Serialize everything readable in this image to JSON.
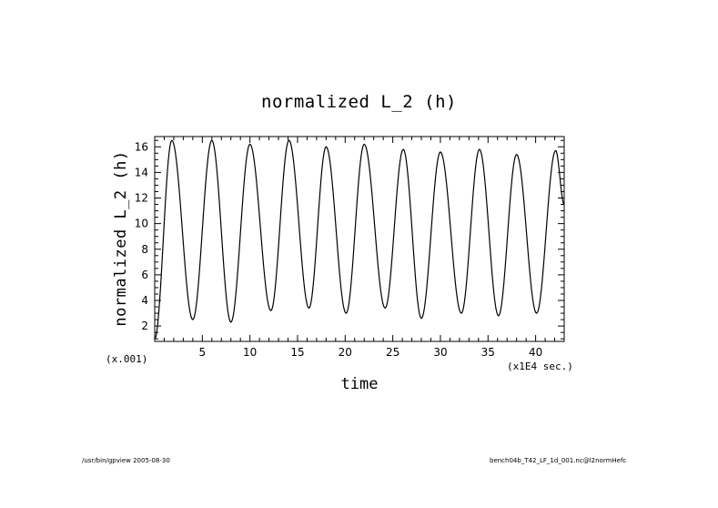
{
  "chart_data": {
    "type": "line",
    "title": "normalized L_2 (h)",
    "xlabel": "time",
    "ylabel": "normalized L_2 (h)",
    "x_unit_label": "(x1E4 sec.)",
    "y_scale_label": "(x.001)",
    "xlim": [
      0,
      43
    ],
    "ylim": [
      0.8,
      16.8
    ],
    "x_ticks": [
      "5",
      "10",
      "15",
      "20",
      "25",
      "30",
      "35",
      "40"
    ],
    "y_ticks": [
      "2",
      "4",
      "6",
      "8",
      "10",
      "12",
      "14",
      "16"
    ],
    "grid": false,
    "series": [
      {
        "x": [
          0.0,
          1.8,
          4.0,
          6.0,
          8.0,
          10.0,
          12.2,
          14.1,
          16.2,
          18.0,
          20.1,
          22.0,
          24.2,
          26.1,
          28.0,
          30.0,
          32.2,
          34.1,
          36.1,
          38.0,
          40.1,
          42.1,
          43.0
        ],
        "y": [
          1.0,
          16.5,
          2.5,
          16.5,
          2.3,
          16.2,
          3.2,
          16.5,
          3.4,
          16.0,
          3.0,
          16.2,
          3.4,
          15.8,
          2.6,
          15.6,
          3.0,
          15.8,
          2.8,
          15.4,
          3.0,
          15.7,
          11.5
        ]
      }
    ]
  },
  "footer": {
    "left": "/usr/bin/gpview   2005-08-30",
    "right": "bench04b_T42_LF_1d_001.nc@l2normHefc"
  }
}
